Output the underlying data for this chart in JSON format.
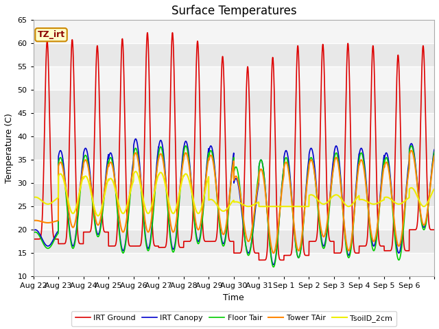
{
  "title": "Surface Temperatures",
  "ylabel": "Temperature (C)",
  "xlabel": "Time",
  "ylim": [
    10,
    65
  ],
  "annotation": "TZ_irt",
  "plot_bg": "#e8e8e8",
  "stripe_color": "#f5f5f5",
  "series": {
    "IRT Ground": {
      "color": "#dd0000",
      "linewidth": 1.2
    },
    "IRT Canopy": {
      "color": "#0000cc",
      "linewidth": 1.2
    },
    "Floor Tair": {
      "color": "#00cc00",
      "linewidth": 1.2
    },
    "Tower TAir": {
      "color": "#ff8800",
      "linewidth": 1.5
    },
    "TsoilD_2cm": {
      "color": "#eeee00",
      "linewidth": 1.5
    }
  },
  "x_tick_labels": [
    "Aug 22",
    "Aug 23",
    "Aug 24",
    "Aug 25",
    "Aug 26",
    "Aug 27",
    "Aug 28",
    "Aug 29",
    "Aug 30",
    "Aug 31",
    "Sep 1",
    "Sep 2",
    "Sep 3",
    "Sep 4",
    "Sep 5",
    "Sep 6"
  ],
  "yticks": [
    10,
    15,
    20,
    25,
    30,
    35,
    40,
    45,
    50,
    55,
    60,
    65
  ],
  "day_peaks": {
    "IRT Ground": [
      60.5,
      60.8,
      59.5,
      61.0,
      62.3,
      62.3,
      60.5,
      57.2,
      55.0,
      57.0,
      59.5,
      59.8,
      60.0,
      59.5,
      57.5,
      59.5
    ],
    "IRT Ground_min": [
      18.0,
      17.0,
      19.5,
      16.5,
      16.5,
      16.2,
      17.5,
      17.5,
      15.0,
      13.5,
      14.5,
      17.5,
      15.0,
      16.5,
      15.5,
      20.0
    ],
    "IRT Canopy": [
      20.0,
      37.0,
      37.5,
      36.5,
      39.5,
      39.2,
      39.0,
      38.0,
      31.0,
      35.0,
      37.0,
      37.5,
      38.0,
      37.5,
      36.5,
      38.5
    ],
    "IRT Canopy_min": [
      16.5,
      16.5,
      19.0,
      15.5,
      16.0,
      15.8,
      17.5,
      17.0,
      15.0,
      12.5,
      14.0,
      16.5,
      14.5,
      16.5,
      15.0,
      20.5
    ],
    "Floor Tair": [
      19.5,
      35.5,
      36.0,
      35.5,
      37.5,
      37.8,
      38.0,
      37.0,
      33.5,
      35.0,
      35.5,
      35.5,
      36.5,
      36.5,
      35.5,
      38.0
    ],
    "Floor Tair_min": [
      16.0,
      16.0,
      18.5,
      15.0,
      15.5,
      15.2,
      17.0,
      16.5,
      14.5,
      12.0,
      14.0,
      16.0,
      14.0,
      15.5,
      13.5,
      20.0
    ],
    "Tower TAir": [
      22.0,
      34.5,
      35.0,
      34.5,
      36.5,
      36.3,
      36.5,
      36.0,
      31.5,
      33.0,
      34.5,
      35.0,
      35.5,
      35.0,
      34.5,
      37.0
    ],
    "Tower TAir_min": [
      21.5,
      20.5,
      21.0,
      19.5,
      19.5,
      19.5,
      20.0,
      19.0,
      17.5,
      15.0,
      15.5,
      18.5,
      15.5,
      17.5,
      16.5,
      21.0
    ],
    "TsoilD_2cm": [
      27.0,
      32.0,
      31.5,
      31.0,
      32.5,
      32.3,
      32.0,
      26.5,
      26.0,
      25.0,
      25.0,
      27.5,
      27.5,
      26.5,
      27.0,
      29.0
    ],
    "TsoilD_2cm_min": [
      25.5,
      23.5,
      23.0,
      23.5,
      23.5,
      23.5,
      23.5,
      24.0,
      25.0,
      25.0,
      25.0,
      25.5,
      25.0,
      25.5,
      25.5,
      25.0
    ]
  }
}
